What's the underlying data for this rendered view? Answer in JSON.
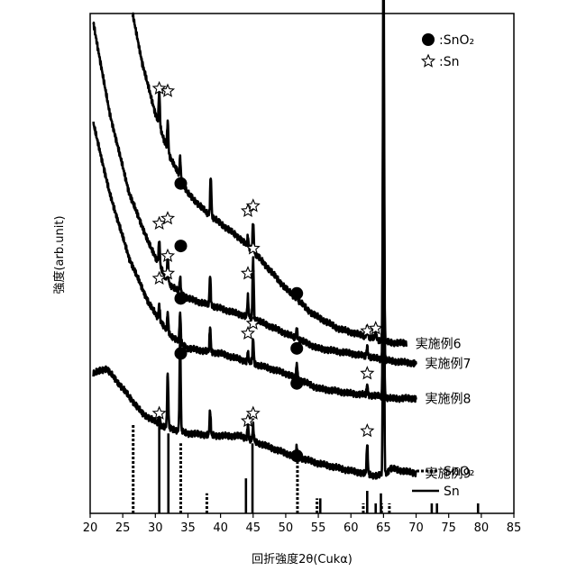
{
  "chart_data": {
    "type": "line",
    "title": "",
    "xlabel": "回折強度2θ(Cukα)",
    "ylabel": "強度(arb.unit)",
    "xlim": [
      20,
      85
    ],
    "x_ticks": [
      "20",
      "25",
      "30",
      "35",
      "40",
      "45",
      "50",
      "55",
      "60",
      "65",
      "70",
      "75",
      "80",
      "85"
    ],
    "y_ticks": [],
    "grid": false,
    "legend": {
      "position": "top-right",
      "markers": [
        {
          "label": ":SnO₂",
          "marker": "filled-circle"
        },
        {
          "label": ":Sn",
          "marker": "star"
        }
      ]
    },
    "reference_legend": {
      "position": "bottom-right",
      "items": [
        {
          "label": "SnO₂",
          "style": "dotted"
        },
        {
          "label": "Sn",
          "style": "solid"
        }
      ]
    },
    "series": [
      {
        "name": "実施例6",
        "baseline": [
          [
            26.5,
            1.0
          ],
          [
            28,
            0.9
          ],
          [
            30,
            0.8
          ],
          [
            32,
            0.72
          ],
          [
            35,
            0.64
          ],
          [
            38,
            0.6
          ],
          [
            40,
            0.58
          ],
          [
            43,
            0.55
          ],
          [
            46,
            0.51
          ],
          [
            50,
            0.45
          ],
          [
            54,
            0.4
          ],
          [
            58,
            0.37
          ],
          [
            62,
            0.355
          ],
          [
            64.8,
            0.345
          ],
          [
            66,
            0.342
          ],
          [
            68.5,
            0.34
          ]
        ],
        "peaks": [
          [
            30.6,
            0.07
          ],
          [
            31.9,
            0.06
          ],
          [
            33.8,
            0.04
          ],
          [
            38.5,
            0.08
          ],
          [
            44.2,
            0.02
          ],
          [
            45.0,
            0.06
          ],
          [
            51.7,
            0.015
          ],
          [
            62.5,
            0.02
          ],
          [
            63.8,
            0.02
          ],
          [
            65.0,
            0.83
          ]
        ]
      },
      {
        "name": "実施例7",
        "baseline": [
          [
            20.5,
            0.98
          ],
          [
            23,
            0.8
          ],
          [
            26,
            0.64
          ],
          [
            29,
            0.54
          ],
          [
            32,
            0.46
          ],
          [
            35,
            0.43
          ],
          [
            40,
            0.41
          ],
          [
            45,
            0.39
          ],
          [
            50,
            0.36
          ],
          [
            55,
            0.33
          ],
          [
            60,
            0.32
          ],
          [
            64,
            0.31
          ],
          [
            66,
            0.305
          ],
          [
            70,
            0.3
          ]
        ],
        "peaks": [
          [
            30.6,
            0.05
          ],
          [
            31.9,
            0.05
          ],
          [
            33.8,
            0.03
          ],
          [
            38.4,
            0.06
          ],
          [
            44.2,
            0.04
          ],
          [
            45.0,
            0.12
          ],
          [
            51.7,
            0.02
          ],
          [
            62.5,
            0.02
          ],
          [
            65.0,
            0.68
          ]
        ]
      },
      {
        "name": "実施例8",
        "baseline": [
          [
            20.5,
            0.78
          ],
          [
            23,
            0.64
          ],
          [
            26,
            0.51
          ],
          [
            29,
            0.42
          ],
          [
            32,
            0.36
          ],
          [
            35,
            0.33
          ],
          [
            40,
            0.32
          ],
          [
            45,
            0.3
          ],
          [
            50,
            0.28
          ],
          [
            55,
            0.25
          ],
          [
            60,
            0.24
          ],
          [
            64,
            0.235
          ],
          [
            66,
            0.23
          ],
          [
            70,
            0.23
          ]
        ],
        "peaks": [
          [
            30.6,
            0.03
          ],
          [
            31.9,
            0.04
          ],
          [
            33.8,
            0.06
          ],
          [
            38.4,
            0.05
          ],
          [
            44.2,
            0.02
          ],
          [
            45.0,
            0.05
          ],
          [
            51.7,
            0.03
          ],
          [
            62.5,
            0.02
          ],
          [
            65.0,
            0.54
          ]
        ]
      },
      {
        "name": "実施例9",
        "baseline": [
          [
            20.5,
            0.28
          ],
          [
            22.5,
            0.29
          ],
          [
            25,
            0.25
          ],
          [
            28,
            0.2
          ],
          [
            31,
            0.175
          ],
          [
            35,
            0.16
          ],
          [
            40,
            0.155
          ],
          [
            43,
            0.155
          ],
          [
            46,
            0.14
          ],
          [
            50,
            0.12
          ],
          [
            55,
            0.1
          ],
          [
            60,
            0.085
          ],
          [
            64,
            0.075
          ],
          [
            65.5,
            0.08
          ],
          [
            66,
            0.09
          ],
          [
            70,
            0.08
          ]
        ],
        "peaks": [
          [
            30.6,
            0.03
          ],
          [
            31.9,
            0.11
          ],
          [
            33.8,
            0.19
          ],
          [
            38.4,
            0.05
          ],
          [
            44.2,
            0.03
          ],
          [
            45.0,
            0.03
          ],
          [
            51.7,
            0.02
          ],
          [
            62.5,
            0.06
          ],
          [
            65.0,
            0.63
          ]
        ]
      }
    ],
    "reference_patterns": {
      "SnO2": [
        [
          26.6,
          0.18
        ],
        [
          33.9,
          0.14
        ],
        [
          37.9,
          0.04
        ],
        [
          51.8,
          0.11
        ],
        [
          54.8,
          0.03
        ],
        [
          61.9,
          0.02
        ],
        [
          64.7,
          0.02
        ],
        [
          65.9,
          0.02
        ]
      ],
      "Sn": [
        [
          30.6,
          0.18
        ],
        [
          32.0,
          0.16
        ],
        [
          43.9,
          0.07
        ],
        [
          44.9,
          0.14
        ],
        [
          55.3,
          0.03
        ],
        [
          62.5,
          0.045
        ],
        [
          63.8,
          0.02
        ],
        [
          64.6,
          0.04
        ],
        [
          72.4,
          0.02
        ],
        [
          73.2,
          0.02
        ],
        [
          79.5,
          0.02
        ]
      ]
    },
    "markers": {
      "SnO2": [
        [
          33.9,
          0.66
        ],
        [
          51.7,
          0.44
        ],
        [
          33.9,
          0.43
        ],
        [
          51.7,
          0.33
        ],
        [
          33.9,
          0.32
        ],
        [
          51.7,
          0.26
        ],
        [
          33.9,
          0.535
        ],
        [
          51.7,
          0.115
        ]
      ],
      "Sn": [
        [
          30.6,
          0.85
        ],
        [
          31.9,
          0.845
        ],
        [
          44.2,
          0.605
        ],
        [
          45.0,
          0.615
        ],
        [
          62.5,
          0.365
        ],
        [
          63.8,
          0.37
        ],
        [
          30.6,
          0.58
        ],
        [
          31.9,
          0.59
        ],
        [
          44.2,
          0.48
        ],
        [
          45.0,
          0.53
        ],
        [
          30.6,
          0.47
        ],
        [
          31.9,
          0.48
        ],
        [
          44.2,
          0.36
        ],
        [
          45.0,
          0.38
        ],
        [
          62.5,
          0.28
        ],
        [
          30.6,
          0.2
        ],
        [
          31.9,
          0.515
        ],
        [
          44.2,
          0.185
        ],
        [
          45.0,
          0.2
        ],
        [
          62.5,
          0.165
        ]
      ]
    }
  }
}
